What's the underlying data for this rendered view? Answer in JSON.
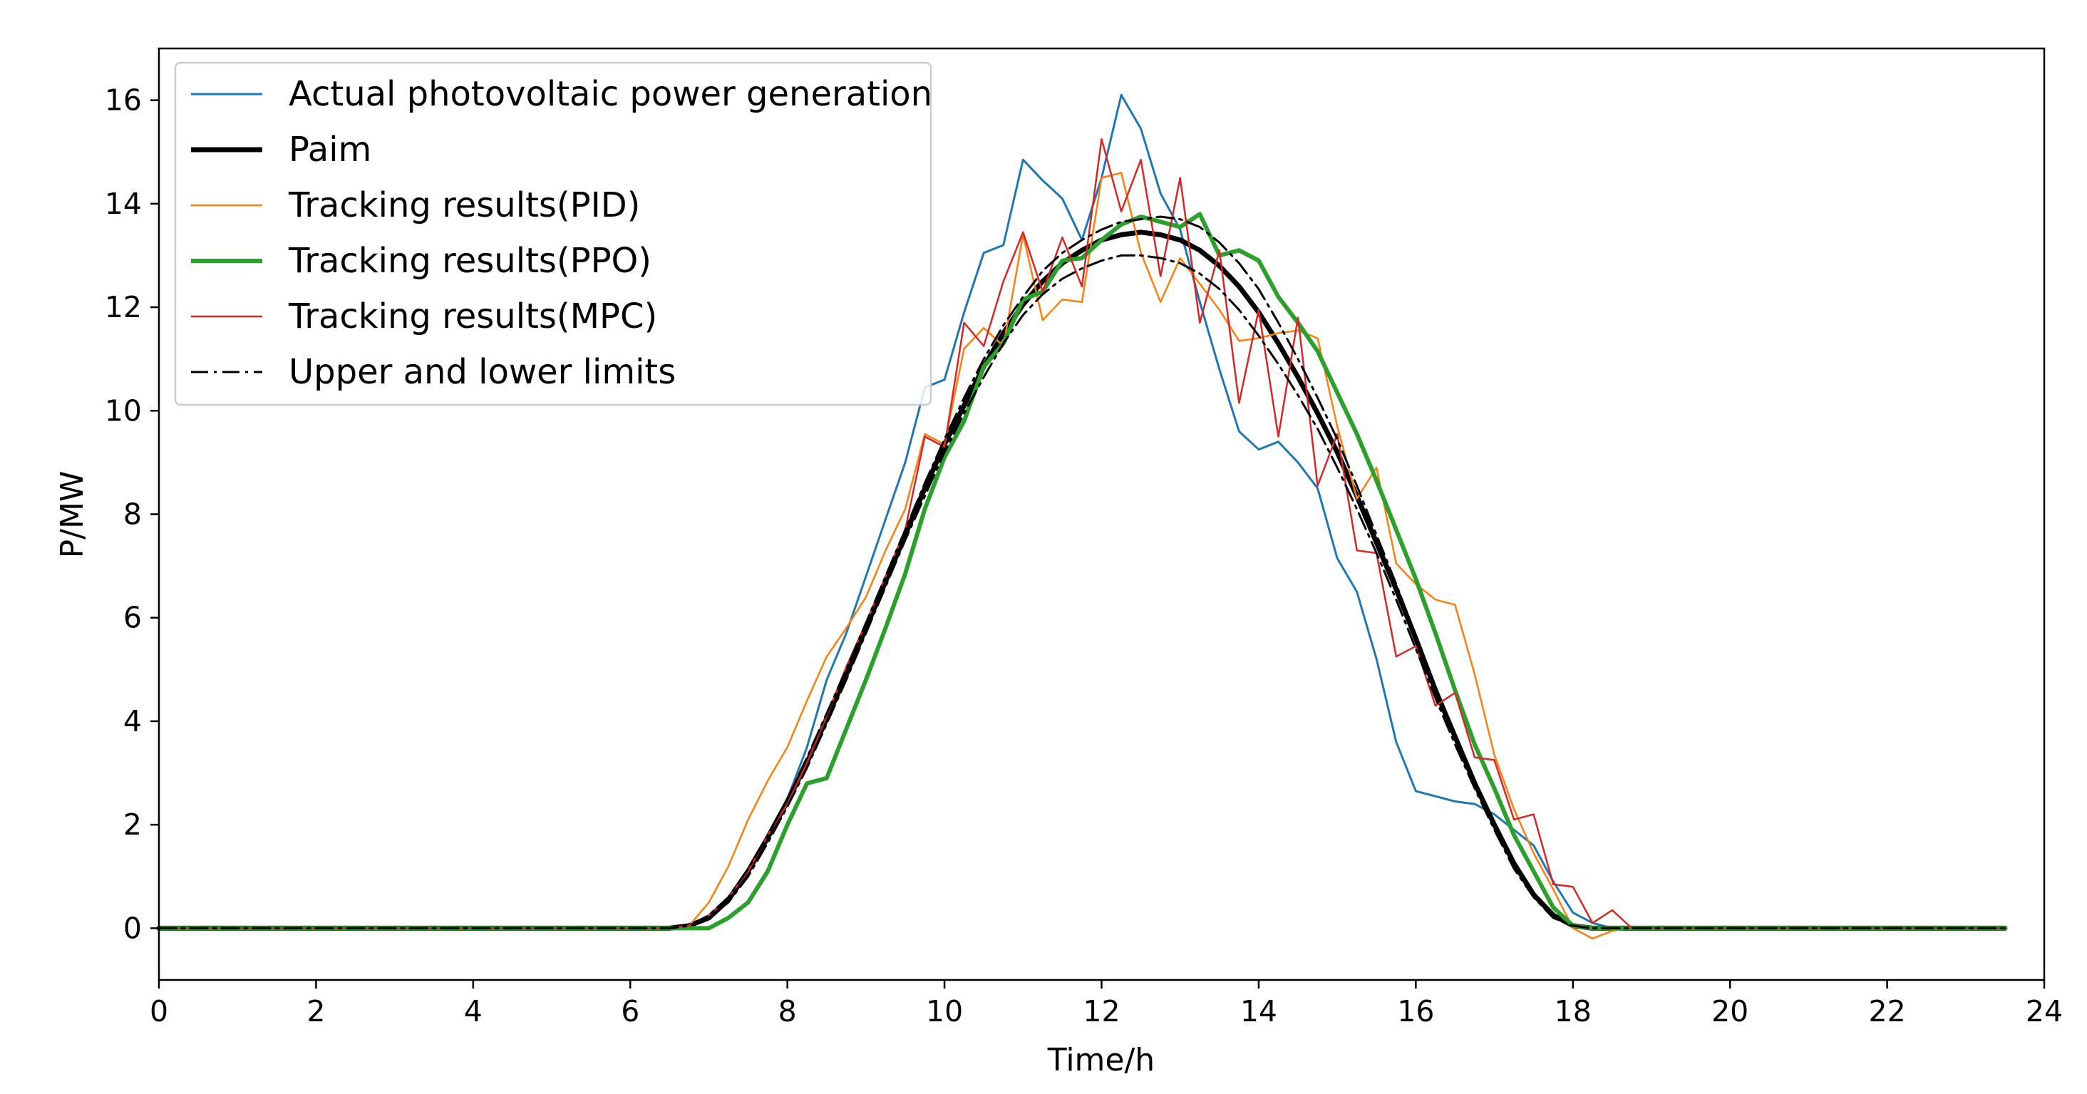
{
  "chart_data": {
    "type": "line",
    "title": "",
    "xlabel": "Time/h",
    "ylabel": "P/MW",
    "xlim": [
      0,
      24
    ],
    "ylim": [
      -1,
      17
    ],
    "xticks": [
      "0",
      "2",
      "4",
      "6",
      "8",
      "10",
      "12",
      "14",
      "16",
      "18",
      "20",
      "22",
      "24"
    ],
    "yticks": [
      "0",
      "2",
      "4",
      "6",
      "8",
      "10",
      "12",
      "14",
      "16"
    ],
    "grid": false,
    "legend_position": "top-left",
    "x": [
      0,
      6.5,
      6.75,
      7.0,
      7.25,
      7.5,
      7.75,
      8.0,
      8.25,
      8.5,
      8.75,
      9.0,
      9.25,
      9.5,
      9.75,
      10.0,
      10.25,
      10.5,
      10.75,
      11.0,
      11.25,
      11.5,
      11.75,
      12.0,
      12.25,
      12.5,
      12.75,
      13.0,
      13.25,
      13.5,
      13.75,
      14.0,
      14.25,
      14.5,
      14.75,
      15.0,
      15.25,
      15.5,
      15.75,
      16.0,
      16.25,
      16.5,
      16.75,
      17.0,
      17.25,
      17.5,
      17.75,
      18.0,
      18.25,
      18.5,
      18.75,
      19.0,
      19.25,
      23.5
    ],
    "series": [
      {
        "name": "Actual photovoltaic power generation",
        "color": "#1f77b4",
        "style": "solid",
        "width": 3,
        "values": [
          0,
          0,
          0.05,
          0.25,
          0.6,
          1.1,
          1.8,
          2.5,
          3.5,
          4.8,
          5.7,
          6.8,
          7.9,
          9.0,
          10.45,
          10.6,
          11.9,
          13.05,
          13.2,
          14.85,
          14.45,
          14.1,
          13.3,
          14.5,
          16.1,
          15.45,
          14.2,
          13.5,
          12.1,
          10.8,
          9.6,
          9.25,
          9.4,
          9.0,
          8.5,
          7.15,
          6.5,
          5.2,
          3.6,
          2.65,
          2.55,
          2.45,
          2.4,
          2.2,
          1.9,
          1.6,
          0.9,
          0.3,
          0.1,
          0,
          0,
          0,
          0,
          0
        ]
      },
      {
        "name": "Paim",
        "color": "#000000",
        "style": "solid",
        "width": 7,
        "values": [
          0,
          0,
          0.05,
          0.2,
          0.55,
          1.1,
          1.75,
          2.45,
          3.2,
          4.05,
          4.9,
          5.8,
          6.7,
          7.6,
          8.5,
          9.35,
          10.1,
          10.85,
          11.5,
          12.05,
          12.5,
          12.85,
          13.1,
          13.3,
          13.4,
          13.45,
          13.4,
          13.3,
          13.1,
          12.8,
          12.4,
          11.9,
          11.3,
          10.65,
          9.95,
          9.2,
          8.35,
          7.45,
          6.55,
          5.6,
          4.6,
          3.7,
          2.8,
          2.0,
          1.25,
          0.65,
          0.25,
          0.05,
          0,
          0,
          0,
          0,
          0,
          0
        ]
      },
      {
        "name": "Tracking results(PID)",
        "color": "#ff7f0e",
        "style": "solid",
        "width": 2.5,
        "values": [
          0,
          0,
          0.05,
          0.5,
          1.2,
          2.1,
          2.85,
          3.5,
          4.4,
          5.25,
          5.8,
          6.4,
          7.3,
          8.1,
          9.55,
          9.35,
          11.2,
          11.6,
          11.25,
          13.4,
          11.75,
          12.15,
          12.1,
          14.5,
          14.6,
          13.05,
          12.1,
          12.95,
          12.45,
          11.95,
          11.35,
          11.4,
          11.5,
          11.55,
          11.4,
          9.7,
          8.3,
          8.9,
          7.05,
          6.65,
          6.35,
          6.25,
          4.9,
          3.35,
          2.3,
          1.45,
          0.75,
          0,
          -0.2,
          -0.05,
          0,
          0,
          0,
          0
        ]
      },
      {
        "name": "Tracking results(PPO)",
        "color": "#2ca02c",
        "style": "solid",
        "width": 6,
        "values": [
          0,
          0,
          0,
          0,
          0.2,
          0.5,
          1.1,
          2.0,
          2.8,
          2.9,
          3.85,
          4.8,
          5.8,
          6.85,
          8.1,
          9.1,
          9.8,
          10.85,
          11.3,
          12.15,
          12.3,
          12.9,
          12.95,
          13.3,
          13.6,
          13.75,
          13.65,
          13.55,
          13.8,
          13.0,
          13.1,
          12.9,
          12.2,
          11.7,
          11.15,
          10.35,
          9.55,
          8.65,
          7.7,
          6.75,
          5.7,
          4.6,
          3.55,
          2.7,
          1.8,
          1.1,
          0.4,
          0.05,
          0,
          0,
          0,
          0,
          0,
          0
        ]
      },
      {
        "name": "Tracking results(MPC)",
        "color": "#d62728",
        "style": "solid",
        "width": 2.5,
        "values": [
          0,
          0,
          0.05,
          0.25,
          0.6,
          1.1,
          1.8,
          2.4,
          3.2,
          4.1,
          5.05,
          5.9,
          6.8,
          7.7,
          9.5,
          9.3,
          11.7,
          11.25,
          12.5,
          13.45,
          12.3,
          13.35,
          12.4,
          15.25,
          13.85,
          14.85,
          12.6,
          14.5,
          11.7,
          13.1,
          10.15,
          11.95,
          9.5,
          11.8,
          8.55,
          9.55,
          7.3,
          7.25,
          5.25,
          5.45,
          4.3,
          4.55,
          3.3,
          3.25,
          2.1,
          2.2,
          0.85,
          0.8,
          0.1,
          0.35,
          0,
          0,
          0,
          0
        ]
      },
      {
        "name": "Upper and lower limits",
        "color": "#000000",
        "style": "dashdot",
        "width": 3,
        "values": [
          0,
          0,
          0.05,
          0.25,
          0.6,
          1.15,
          1.8,
          2.5,
          3.3,
          4.15,
          5.0,
          5.9,
          6.8,
          7.7,
          8.6,
          9.45,
          10.25,
          11.0,
          11.65,
          12.2,
          12.7,
          13.05,
          13.3,
          13.5,
          13.65,
          13.7,
          13.75,
          13.7,
          13.55,
          13.25,
          12.85,
          12.35,
          11.7,
          11.0,
          10.25,
          9.45,
          8.55,
          7.6,
          6.65,
          5.65,
          4.6,
          3.65,
          2.75,
          1.95,
          1.2,
          0.6,
          0.2,
          0.05,
          0,
          0,
          0,
          0,
          0,
          0
        ]
      },
      {
        "name": "Lower limit",
        "color": "#000000",
        "style": "dashdot",
        "width": 3,
        "legend": false,
        "values": [
          0,
          0,
          0.05,
          0.2,
          0.5,
          1.0,
          1.65,
          2.35,
          3.1,
          3.95,
          4.8,
          5.7,
          6.6,
          7.5,
          8.35,
          9.2,
          9.95,
          10.65,
          11.3,
          11.85,
          12.25,
          12.55,
          12.75,
          12.9,
          13.0,
          13.0,
          12.95,
          12.85,
          12.65,
          12.35,
          11.95,
          11.45,
          10.9,
          10.3,
          9.65,
          8.9,
          8.1,
          7.25,
          6.35,
          5.4,
          4.45,
          3.55,
          2.7,
          1.9,
          1.15,
          0.6,
          0.2,
          0.05,
          0,
          0,
          0,
          0,
          0,
          0
        ]
      }
    ]
  }
}
